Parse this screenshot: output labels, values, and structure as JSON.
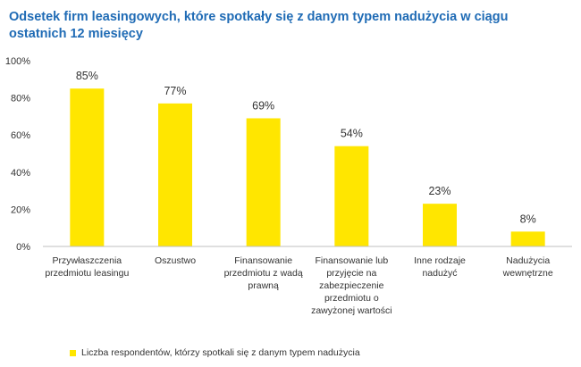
{
  "chart_data": {
    "type": "bar",
    "title": "Odsetek firm leasingowych, które spotkały się z danym typem nadużycia w ciągu ostatnich 12 miesięcy",
    "categories": [
      "Przywłaszczenia przedmiotu leasingu",
      "Oszustwo",
      "Finansowanie przedmiotu z wadą prawną",
      "Finansowanie lub przyjęcie na zabezpieczenie przedmiotu o zawyżonej wartości",
      "Inne rodzaje nadużyć",
      "Nadużycia wewnętrzne"
    ],
    "series": [
      {
        "name": "Liczba respondentów, którzy spotkali się z danym typem nadużycia",
        "values": [
          85,
          77,
          69,
          54,
          23,
          8
        ]
      }
    ],
    "data_labels": [
      "85%",
      "77%",
      "69%",
      "54%",
      "23%",
      "8%"
    ],
    "ylim": [
      0,
      100
    ],
    "yticks": [
      0,
      20,
      40,
      60,
      80,
      100
    ],
    "ytick_labels": [
      "0%",
      "20%",
      "40%",
      "60%",
      "80%",
      "100%"
    ],
    "grid": false,
    "legend_position": "bottom-left",
    "colors": {
      "bar": "#ffe600",
      "title": "#1f6bb5",
      "axis": "#bfbfbf",
      "text": "#333333"
    }
  }
}
